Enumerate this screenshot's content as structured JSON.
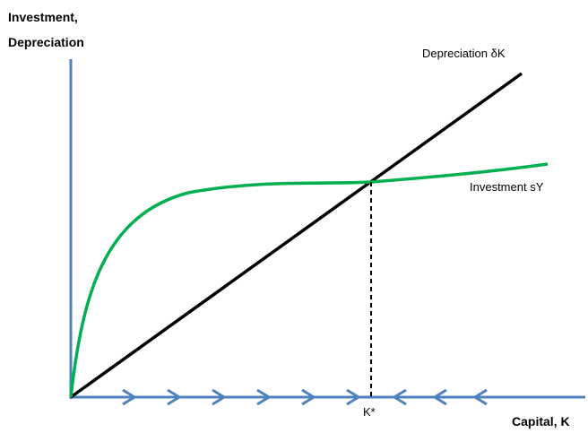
{
  "diagram": {
    "y_axis_label_line1": "Investment,",
    "y_axis_label_line2": "Depreciation",
    "x_axis_label": "Capital, K",
    "depreciation_label": "Depreciation δK",
    "investment_label": "Investment sY",
    "steady_state_label": "K*",
    "arrows_right_count": 6,
    "arrows_left_count": 3,
    "colors": {
      "axes": "#4f81bd",
      "depreciation_line": "#000000",
      "investment_curve": "#00b050",
      "dashed_line": "#000000"
    }
  }
}
